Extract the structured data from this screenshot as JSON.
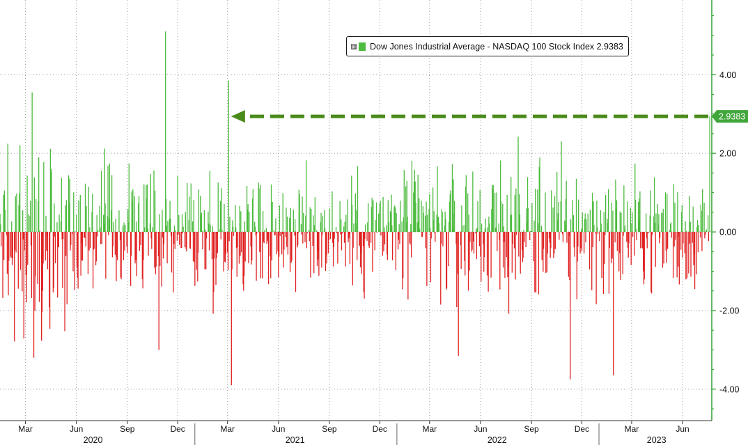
{
  "colors": {
    "positive": "#4cbb3e",
    "negative": "#e02222",
    "axis": "#2e9e2e",
    "arrow": "#4a8a1a",
    "value_badge": "#3fa63a"
  },
  "legend": {
    "label": "Dow Jones Industrial Average - NASDAQ 100 Stock Index 2.9383",
    "expand_glyph": "⊞"
  },
  "chart_data": {
    "type": "bar",
    "title": "",
    "series": [
      {
        "name": "Dow Jones Industrial Average - NASDAQ 100 Stock Index",
        "last_value": 2.9383
      }
    ],
    "last_value_label": "2.9383",
    "y_axis": {
      "position": "right",
      "ylim": [
        -4.8,
        5.9
      ],
      "ticks": [
        4.0,
        2.0,
        0.0,
        -2.0,
        -4.0
      ],
      "tick_labels": [
        "4.00",
        "2.00",
        "0.00",
        "-2.00",
        "-4.00"
      ]
    },
    "x_axis": {
      "range": [
        "2020-01-15",
        "2023-07-20"
      ],
      "month_ticks": [
        {
          "date": "2020-03-01",
          "label": "Mar"
        },
        {
          "date": "2020-06-01",
          "label": "Jun"
        },
        {
          "date": "2020-09-01",
          "label": "Sep"
        },
        {
          "date": "2020-12-01",
          "label": "Dec"
        },
        {
          "date": "2021-03-01",
          "label": "Mar"
        },
        {
          "date": "2021-06-01",
          "label": "Jun"
        },
        {
          "date": "2021-09-01",
          "label": "Sep"
        },
        {
          "date": "2021-12-01",
          "label": "Dec"
        },
        {
          "date": "2022-03-01",
          "label": "Mar"
        },
        {
          "date": "2022-06-01",
          "label": "Jun"
        },
        {
          "date": "2022-09-01",
          "label": "Sep"
        },
        {
          "date": "2022-12-01",
          "label": "Dec"
        },
        {
          "date": "2023-03-01",
          "label": "Mar"
        },
        {
          "date": "2023-06-01",
          "label": "Jun"
        }
      ],
      "year_labels": [
        {
          "date": "2020-07-01",
          "label": "2020"
        },
        {
          "date": "2021-07-01",
          "label": "2021"
        },
        {
          "date": "2022-07-01",
          "label": "2022"
        },
        {
          "date": "2023-04-15",
          "label": "2023"
        }
      ],
      "year_separators": [
        "2021-01-01",
        "2022-01-01",
        "2023-01-01"
      ]
    },
    "grid": true,
    "legend_position": "top-right",
    "annotation": {
      "type": "dashed-arrow",
      "from_date": "2023-07-20",
      "to_date": "2021-03-10",
      "y": 2.9383
    },
    "notable_values": [
      {
        "date": "2020-03-13",
        "value": 3.55
      },
      {
        "date": "2020-03-16",
        "value": -3.2
      },
      {
        "date": "2020-11-09",
        "value": 5.1
      },
      {
        "date": "2020-10-28",
        "value": -3.0
      },
      {
        "date": "2021-03-03",
        "value": 3.85
      },
      {
        "date": "2021-03-08",
        "value": -3.9
      },
      {
        "date": "2022-04-22",
        "value": -3.15
      },
      {
        "date": "2022-11-10",
        "value": -3.75
      },
      {
        "date": "2023-01-27",
        "value": -3.65
      },
      {
        "date": "2023-07-20",
        "value": 2.9383
      }
    ]
  }
}
